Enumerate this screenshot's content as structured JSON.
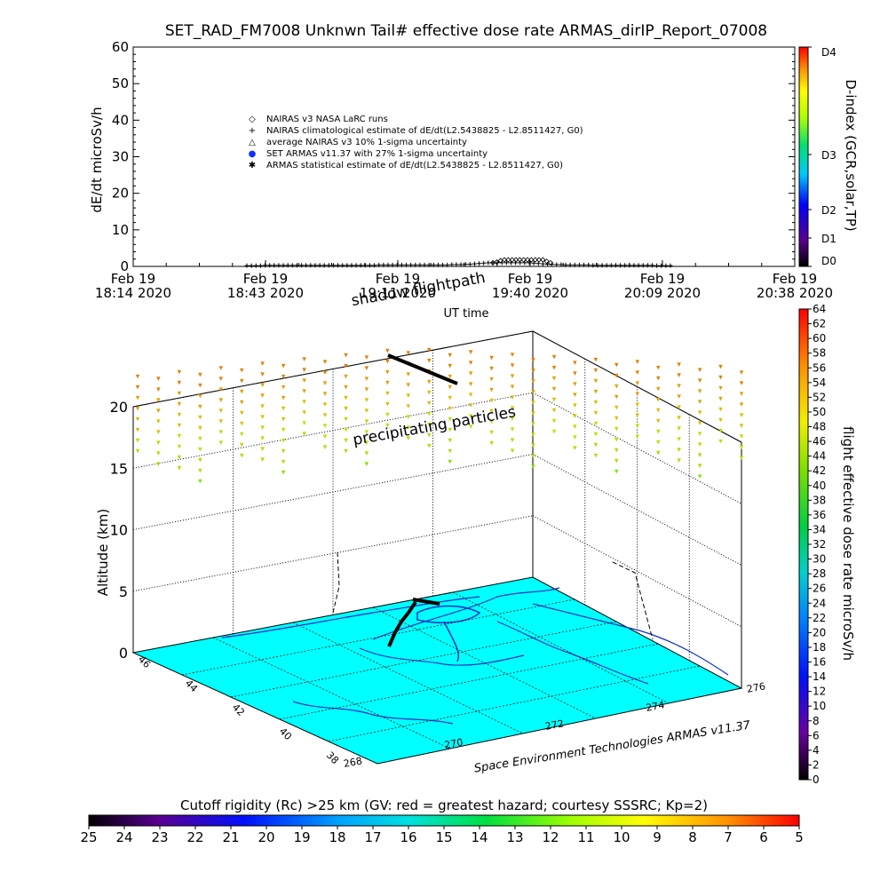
{
  "title": "SET_RAD_FM7008  Unknwn Tail#  effective dose rate ARMAS_dirIP_Report_07008",
  "chart_data": [
    {
      "type": "scatter",
      "ylabel": "dE/dt microSv/h",
      "xlabel": "UT time",
      "ylim": [
        0,
        60
      ],
      "yticks": [
        0,
        10,
        20,
        30,
        40,
        50,
        60
      ],
      "xticks": [
        {
          "line1": "Feb 19",
          "line2": "18:14 2020"
        },
        {
          "line1": "Feb 19",
          "line2": "18:43 2020"
        },
        {
          "line1": "Feb 19",
          "line2": "19:11 2020"
        },
        {
          "line1": "Feb 19",
          "line2": "19:40 2020"
        },
        {
          "line1": "Feb 19",
          "line2": "20:09 2020"
        },
        {
          "line1": "Feb 19",
          "line2": "20:38 2020"
        }
      ],
      "legend_position": "center",
      "legend": [
        {
          "symbol": "◇",
          "label": "NAIRAS v3 NASA LaRC runs"
        },
        {
          "symbol": "+",
          "label": "NAIRAS climatological estimate of dE/dt(L2.5438825 - L2.8511427, G0)"
        },
        {
          "symbol": "△",
          "label": "average NAIRAS v3 10% 1-sigma uncertainty"
        },
        {
          "symbol": "●",
          "label": "SET ARMAS v11.37 with 27% 1-sigma uncertainty"
        },
        {
          "symbol": "✱",
          "label": "ARMAS statistical estimate of dE/dt(L2.5438825 - L2.8511427, G0)"
        }
      ],
      "series_armas_range_min": [
        0.35,
        1.1
      ],
      "armas_values": [
        0.2,
        0.2,
        0.2,
        0.2,
        0.3,
        0.3,
        0.3,
        0.3,
        0.3,
        0.3,
        0.3,
        0.3,
        0.3,
        0.3,
        0.3,
        0.3,
        0.3,
        0.3,
        0.3,
        0.3,
        0.3,
        0.3,
        0.3,
        0.3,
        0.3,
        0.3,
        0.3,
        0.3,
        0.3,
        0.4,
        0.4,
        0.4,
        0.4,
        0.4,
        0.4,
        0.4,
        0.4,
        0.4,
        0.4,
        0.4,
        0.4,
        0.4,
        0.4,
        0.4,
        0.4,
        0.5,
        0.5,
        0.5,
        0.6,
        0.6,
        0.7,
        0.8,
        0.9,
        1.0,
        1.0,
        1.0,
        1.0,
        1.0,
        1.0,
        1.0,
        1.0,
        1.0,
        1.0,
        0.9,
        0.8,
        0.7,
        0.6,
        0.6,
        0.5,
        0.5,
        0.4,
        0.4,
        0.4,
        0.4,
        0.4,
        0.4,
        0.3,
        0.3,
        0.3,
        0.3,
        0.3,
        0.3,
        0.3,
        0.3,
        0.3,
        0.3,
        0.3,
        0.3,
        0.3,
        0.3,
        0.2,
        0.2,
        0.2,
        0.2
      ],
      "nairas_values": [
        1.0,
        1.2,
        1.6,
        1.8,
        1.8,
        1.8,
        1.8,
        1.8,
        1.8,
        1.8,
        1.8,
        1.8,
        1.8,
        1.8,
        1.4,
        1.0
      ],
      "colorbar": {
        "label": "D-index (GCR,solar,TP)",
        "ticks": [
          "D0",
          "D1",
          "D2",
          "D3",
          "D4"
        ]
      }
    },
    {
      "type": "scatter",
      "projection": "3d",
      "zlabel": "Altitude (km)",
      "zlim": [
        0,
        20
      ],
      "zticks": [
        0,
        5,
        10,
        15,
        20
      ],
      "lat_ticks": [
        38,
        40,
        42,
        44,
        46
      ],
      "lon_ticks": [
        268,
        270,
        272,
        274,
        276
      ],
      "annotations": [
        "shadow flightpath",
        "precipitating particles",
        "Space Environment Technologies ARMAS v11.37"
      ],
      "colorbar": {
        "label": "flight effective dose rate microSv/h",
        "min": 0,
        "max": 64,
        "ticks": [
          0,
          2,
          4,
          6,
          8,
          10,
          12,
          14,
          16,
          18,
          20,
          22,
          24,
          26,
          28,
          30,
          32,
          34,
          36,
          38,
          40,
          42,
          44,
          46,
          48,
          50,
          52,
          54,
          56,
          58,
          60,
          62,
          64
        ]
      },
      "cutoff_bar": {
        "label": "Cutoff rigidity (Rc) >25 km (GV: red = greatest hazard; courtesy SSSRC; Kp=2)",
        "ticks": [
          25,
          24,
          23,
          22,
          21,
          20,
          19,
          18,
          17,
          16,
          15,
          14,
          13,
          12,
          11,
          10,
          9,
          8,
          7,
          6,
          5
        ]
      }
    }
  ]
}
